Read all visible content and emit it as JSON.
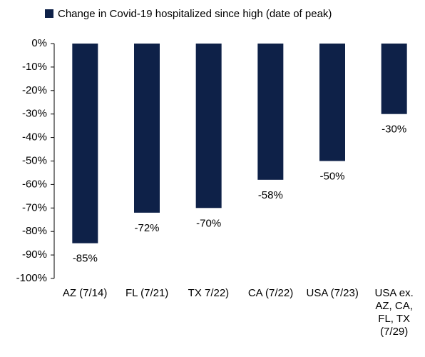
{
  "chart_data": {
    "type": "bar",
    "legend": "Change in Covid-19 hospitalized since high (date of peak)",
    "categories": [
      "AZ (7/14)",
      "FL (7/21)",
      "TX 7/22)",
      "CA (7/22)",
      "USA (7/23)",
      "USA ex. AZ, CA, FL, TX (7/29)"
    ],
    "values": [
      -85,
      -72,
      -70,
      -58,
      -50,
      -30
    ],
    "value_labels": [
      "-85%",
      "-72%",
      "-70%",
      "-58%",
      "-50%",
      "-30%"
    ],
    "color": "#0e2148",
    "ylim": [
      -100,
      0
    ],
    "yticks": [
      {
        "value": 0,
        "label": "0%"
      },
      {
        "value": -10,
        "label": "-10%"
      },
      {
        "value": -20,
        "label": "-20%"
      },
      {
        "value": -30,
        "label": "-30%"
      },
      {
        "value": -40,
        "label": "-40%"
      },
      {
        "value": -50,
        "label": "-50%"
      },
      {
        "value": -60,
        "label": "-60%"
      },
      {
        "value": -70,
        "label": "-70%"
      },
      {
        "value": -80,
        "label": "-80%"
      },
      {
        "value": -90,
        "label": "-90%"
      },
      {
        "value": -100,
        "label": "-100%"
      }
    ]
  }
}
